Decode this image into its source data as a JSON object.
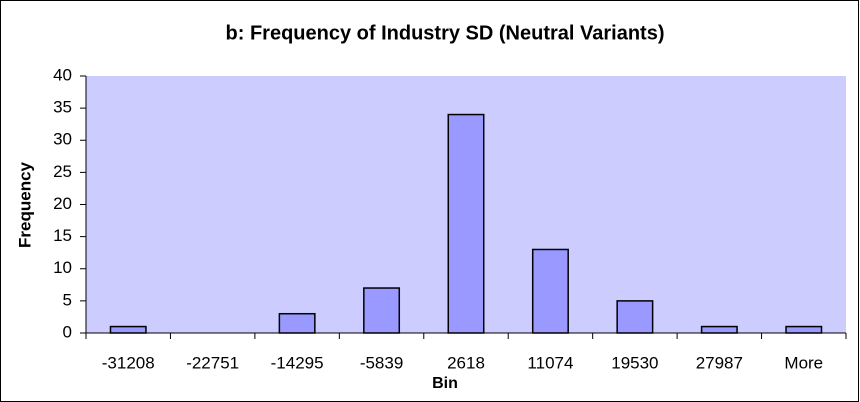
{
  "chart_data": {
    "type": "bar",
    "title": "b: Frequency of Industry SD (Neutral Variants)",
    "x_label": "Bin",
    "y_label": "Frequency",
    "categories": [
      "-31208",
      "-22751",
      "-14295",
      "-5839",
      "2618",
      "11074",
      "19530",
      "27987",
      "More"
    ],
    "values": [
      1,
      0,
      3,
      7,
      34,
      13,
      5,
      1,
      1
    ],
    "color": "#9999ff",
    "plot_background": "#ccccff",
    "ylim": [
      0,
      40
    ],
    "yticks": [
      0,
      5,
      10,
      15,
      20,
      25,
      30,
      35,
      40
    ],
    "grid": false
  }
}
